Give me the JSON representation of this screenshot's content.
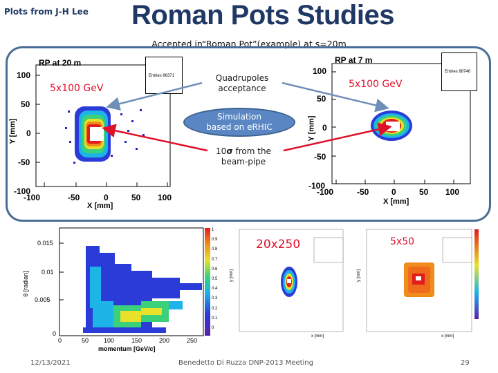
{
  "slide": {
    "title": "Roman Pots Studies",
    "credit": "Plots from J-H Lee",
    "subtitle": "Accepted in“Roman Pot”(example) at s=20m"
  },
  "callouts": {
    "quadrupoles": "Quadrupoles",
    "acceptance": "acceptance",
    "simulation": "Simulation",
    "based_on": "based on eRHIC",
    "sigma_prefix": "10",
    "sigma_symbol": "σ",
    "sigma_suffix": " from the",
    "beam_pipe": "beam-pipe"
  },
  "plot_left": {
    "title": "RP at 20 m",
    "beam_label": "5x100 GeV",
    "stat": "Entries  86371",
    "ylabel": "Y [mm]",
    "xlabel": "X [mm]",
    "yticks": [
      "100",
      "50",
      "0",
      "-50",
      "-100"
    ],
    "xticks": [
      "-100",
      "-50",
      "0",
      "50",
      "100"
    ]
  },
  "plot_right": {
    "title": "RP at 7 m",
    "beam_label": "5x100 GeV",
    "stat": "Entries  88746",
    "ylabel": "Y [mm]",
    "xlabel": "X [mm]",
    "yticks": [
      "100",
      "50",
      "0",
      "-50",
      "-100"
    ],
    "xticks": [
      "-100",
      "-50",
      "0",
      "50",
      "100"
    ]
  },
  "plot_bottom_left": {
    "ylabel": "θ [radian]",
    "xlabel": "momentum [GeV/c]",
    "yticks": [
      "0.015",
      "0.01",
      "0.005",
      "0"
    ],
    "xticks": [
      "0",
      "50",
      "100",
      "150",
      "200",
      "250"
    ],
    "zticks": [
      "1",
      "0.9",
      "0.8",
      "0.7",
      "0.6",
      "0.5",
      "0.4",
      "0.3",
      "0.2",
      "0.1",
      "0"
    ]
  },
  "plot_bottom_mid": {
    "beam_label": "20x250",
    "ylabel": "y [mm]",
    "xlabel": "x [mm]"
  },
  "plot_bottom_right": {
    "beam_label": "5x50",
    "ylabel": "y [mm]",
    "xlabel": "x [mm]"
  },
  "footer": {
    "date": "12/13/2021",
    "center": "Benedetto Di Ruzza DNP-2013 Meeting",
    "page": "29"
  },
  "colors": {
    "title": "#1f3864",
    "frame": "#4a6d96",
    "accent_red": "#e0102a",
    "ellipse": "#5a86c3"
  }
}
